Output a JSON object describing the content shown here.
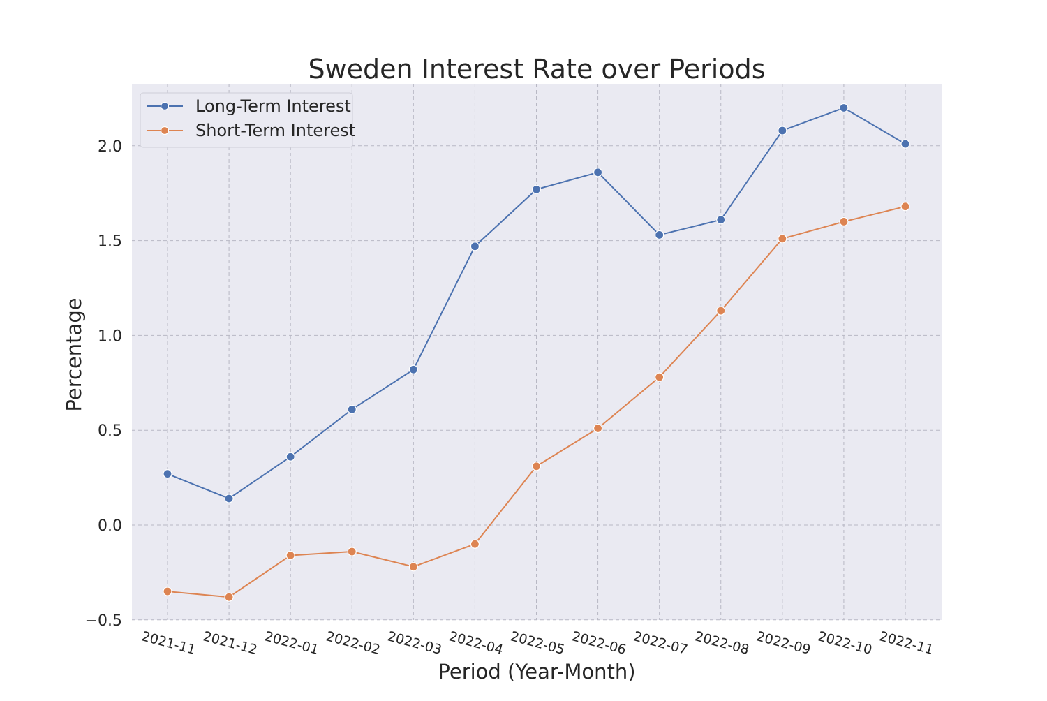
{
  "chart_data": {
    "type": "line",
    "title": "Sweden Interest Rate over Periods",
    "xlabel": "Period (Year-Month)",
    "ylabel": "Percentage",
    "categories": [
      "2021-11",
      "2021-12",
      "2022-01",
      "2022-02",
      "2022-03",
      "2022-04",
      "2022-05",
      "2022-06",
      "2022-07",
      "2022-08",
      "2022-09",
      "2022-10",
      "2022-11"
    ],
    "series": [
      {
        "name": "Long-Term Interest",
        "color": "#4c72b0",
        "values": [
          0.27,
          0.14,
          0.36,
          0.61,
          0.82,
          1.47,
          1.77,
          1.86,
          1.53,
          1.61,
          2.08,
          2.2,
          2.01
        ]
      },
      {
        "name": "Short-Term Interest",
        "color": "#dd8452",
        "values": [
          -0.35,
          -0.38,
          -0.16,
          -0.14,
          -0.22,
          -0.1,
          0.31,
          0.51,
          0.78,
          1.13,
          1.51,
          1.6,
          1.68
        ]
      }
    ],
    "yticks": [
      "−0.5",
      "0.0",
      "0.5",
      "1.0",
      "1.5",
      "2.0"
    ],
    "ytick_values": [
      -0.5,
      0.0,
      0.5,
      1.0,
      1.5,
      2.0
    ],
    "ylim": [
      -0.5,
      2.33
    ],
    "grid": true,
    "legend_position": "top-left"
  }
}
